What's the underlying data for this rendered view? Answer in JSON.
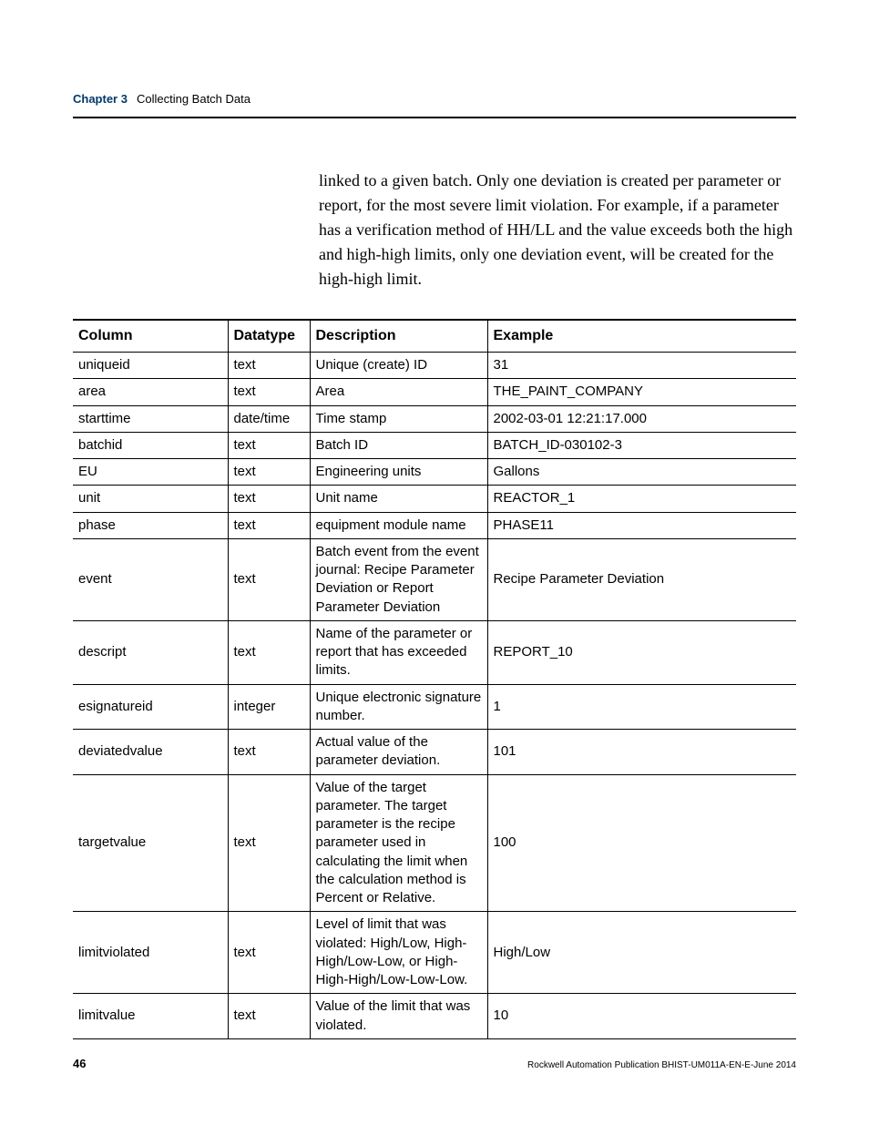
{
  "header": {
    "chapter_label": "Chapter 3",
    "chapter_title": "Collecting Batch Data"
  },
  "body_paragraph": "linked to a given batch. Only one deviation is created per parameter or report, for the most severe limit violation. For example, if a parameter has a verification method of HH/LL and the value exceeds both the high and high-high limits, only one deviation event, will be created for the high-high limit.",
  "table": {
    "columns": [
      "Column",
      "Datatype",
      "Description",
      "Example"
    ],
    "rows": [
      [
        "uniqueid",
        "text",
        "Unique (create) ID",
        "31"
      ],
      [
        "area",
        "text",
        "Area",
        "THE_PAINT_COMPANY"
      ],
      [
        "starttime",
        "date/time",
        "Time stamp",
        "2002-03-01 12:21:17.000"
      ],
      [
        "batchid",
        "text",
        "Batch ID",
        "BATCH_ID-030102-3"
      ],
      [
        "EU",
        "text",
        "Engineering units",
        "Gallons"
      ],
      [
        "unit",
        "text",
        "Unit name",
        "REACTOR_1"
      ],
      [
        "phase",
        "text",
        "equipment module name",
        "PHASE11"
      ],
      [
        "event",
        "text",
        "Batch event from the event journal: Recipe Parameter Deviation or Report Parameter Deviation",
        "Recipe Parameter Deviation"
      ],
      [
        "descript",
        "text",
        "Name of the parameter or report that has exceeded limits.",
        "REPORT_10"
      ],
      [
        "esignatureid",
        "integer",
        "Unique electronic signature number.",
        "1"
      ],
      [
        "deviatedvalue",
        "text",
        "Actual value of the parameter deviation.",
        "101"
      ],
      [
        "targetvalue",
        "text",
        "Value of the target parameter. The target parameter is the recipe parameter used in calculating the limit when the calculation method is Percent or Relative.",
        "100"
      ],
      [
        "limitviolated",
        "text",
        "Level of limit that was violated: High/Low, High-High/Low-Low, or High-High-High/Low-Low-Low.",
        "High/Low"
      ],
      [
        "limitvalue",
        "text",
        "Value of the limit that was violated.",
        "10"
      ]
    ]
  },
  "footer": {
    "page_number": "46",
    "publication": "Rockwell Automation Publication BHIST-UM011A-EN-E-June 2014"
  }
}
